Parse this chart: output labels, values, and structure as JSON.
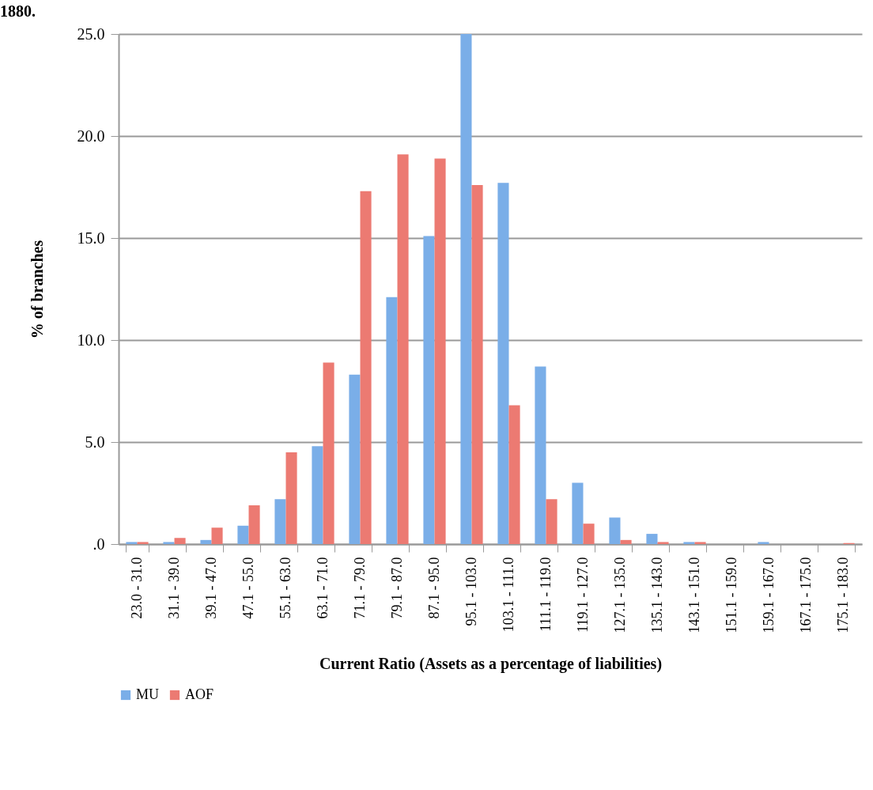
{
  "chart_data": {
    "type": "bar",
    "title": "1880.",
    "xlabel": "Current Ratio (Assets as a percentage of liabilities)",
    "ylabel": "% of branches",
    "categories": [
      "23.0 - 31.0",
      "31.1 - 39.0",
      "39.1 - 47.0",
      "47.1 - 55.0",
      "55.1 - 63.0",
      "63.1 - 71.0",
      "71.1 - 79.0",
      "79.1 - 87.0",
      "87.1 - 95.0",
      "95.1 - 103.0",
      "103.1 - 111.0",
      "111.1 - 119.0",
      "119.1 - 127.0",
      "127.1 - 135.0",
      "135.1 - 143.0",
      "143.1 - 151.0",
      "151.1 - 159.0",
      "159.1 - 167.0",
      "167.1 - 175.0",
      "175.1 - 183.0"
    ],
    "series": [
      {
        "name": "MU",
        "color": "#7aaee8",
        "values": [
          0.1,
          0.1,
          0.2,
          0.9,
          2.2,
          4.8,
          8.3,
          12.1,
          15.1,
          25.0,
          17.7,
          8.7,
          3.0,
          1.3,
          0.5,
          0.1,
          0.0,
          0.1,
          0.0,
          0.0
        ]
      },
      {
        "name": "AOF",
        "color": "#ec7a72",
        "values": [
          0.1,
          0.3,
          0.8,
          1.9,
          4.5,
          8.9,
          17.3,
          19.1,
          18.9,
          17.6,
          6.8,
          2.2,
          1.0,
          0.2,
          0.1,
          0.1,
          0.0,
          0.0,
          0.0,
          0.05
        ]
      }
    ],
    "ylim": [
      0,
      25
    ],
    "yticks": [
      {
        "value": 0,
        "label": ".0"
      },
      {
        "value": 5,
        "label": "5.0"
      },
      {
        "value": 10,
        "label": "10.0"
      },
      {
        "value": 15,
        "label": "15.0"
      },
      {
        "value": 20,
        "label": "20.0"
      },
      {
        "value": 25,
        "label": "25.0"
      }
    ],
    "grid": "y",
    "legend": "bottom"
  }
}
